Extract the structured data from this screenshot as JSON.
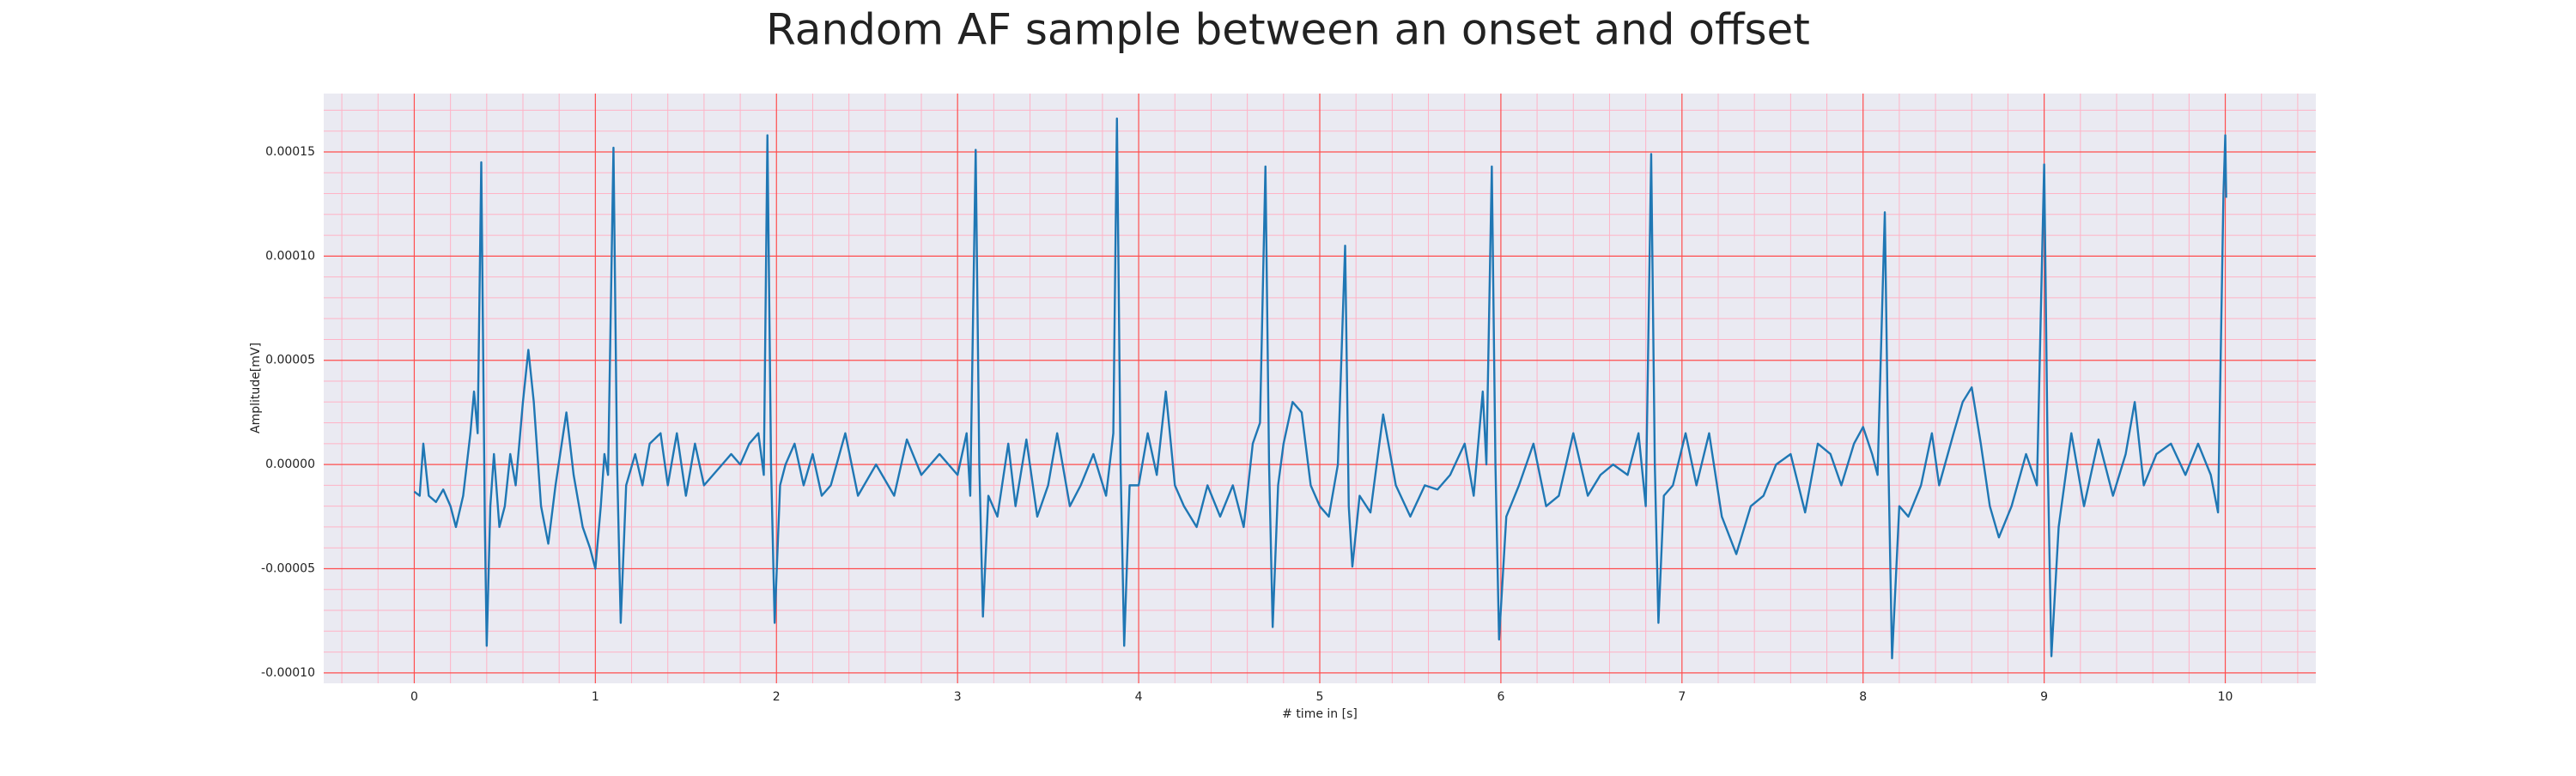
{
  "chart_data": {
    "type": "line",
    "title": "Random AF sample between an onset and offset",
    "xlabel": "# time in [s]",
    "ylabel": "Amplitude[mV]",
    "xlim": [
      -0.5,
      10.5
    ],
    "ylim": [
      -0.000105,
      0.000178
    ],
    "xticks": [
      0,
      1,
      2,
      3,
      4,
      5,
      6,
      7,
      8,
      9,
      10
    ],
    "yticks": [
      {
        "value": -0.0001,
        "label": "-0.00010"
      },
      {
        "value": -5e-05,
        "label": "-0.00005"
      },
      {
        "value": 0,
        "label": "0.00000"
      },
      {
        "value": 5e-05,
        "label": "0.00005"
      },
      {
        "value": 0.0001,
        "label": "0.00010"
      },
      {
        "value": 0.00015,
        "label": "0.00015"
      }
    ],
    "grid": true,
    "minor_grid": true,
    "grid_color": "#ff4d4d",
    "minor_grid_color": "#ffb3c6",
    "background": "#eaeaf2",
    "series": [
      {
        "color": "#1f77b4",
        "x": [
          0.0,
          0.03,
          0.05,
          0.08,
          0.12,
          0.16,
          0.2,
          0.23,
          0.27,
          0.31,
          0.33,
          0.35,
          0.37,
          0.39,
          0.4,
          0.42,
          0.44,
          0.47,
          0.5,
          0.53,
          0.56,
          0.6,
          0.63,
          0.66,
          0.7,
          0.74,
          0.78,
          0.84,
          0.88,
          0.93,
          0.97,
          1.0,
          1.03,
          1.05,
          1.07,
          1.1,
          1.12,
          1.14,
          1.17,
          1.22,
          1.26,
          1.3,
          1.36,
          1.4,
          1.45,
          1.5,
          1.55,
          1.6,
          1.65,
          1.7,
          1.75,
          1.8,
          1.85,
          1.9,
          1.93,
          1.95,
          1.97,
          1.99,
          2.02,
          2.05,
          2.1,
          2.15,
          2.2,
          2.25,
          2.3,
          2.38,
          2.45,
          2.55,
          2.65,
          2.72,
          2.8,
          2.9,
          3.0,
          3.05,
          3.07,
          3.1,
          3.12,
          3.14,
          3.17,
          3.22,
          3.28,
          3.32,
          3.38,
          3.44,
          3.5,
          3.55,
          3.62,
          3.68,
          3.75,
          3.82,
          3.86,
          3.88,
          3.9,
          3.92,
          3.95,
          4.0,
          4.05,
          4.1,
          4.15,
          4.2,
          4.25,
          4.32,
          4.38,
          4.45,
          4.52,
          4.58,
          4.63,
          4.67,
          4.7,
          4.72,
          4.74,
          4.77,
          4.8,
          4.85,
          4.9,
          4.95,
          5.0,
          5.05,
          5.1,
          5.14,
          5.16,
          5.18,
          5.22,
          5.28,
          5.35,
          5.42,
          5.5,
          5.58,
          5.65,
          5.72,
          5.8,
          5.85,
          5.9,
          5.92,
          5.95,
          5.97,
          5.99,
          6.03,
          6.1,
          6.18,
          6.25,
          6.32,
          6.4,
          6.48,
          6.55,
          6.62,
          6.7,
          6.76,
          6.8,
          6.83,
          6.85,
          6.87,
          6.9,
          6.95,
          7.02,
          7.08,
          7.15,
          7.22,
          7.3,
          7.38,
          7.45,
          7.52,
          7.6,
          7.68,
          7.75,
          7.82,
          7.88,
          7.95,
          8.0,
          8.05,
          8.08,
          8.12,
          8.14,
          8.16,
          8.2,
          8.25,
          8.32,
          8.38,
          8.42,
          8.5,
          8.55,
          8.6,
          8.65,
          8.7,
          8.75,
          8.82,
          8.9,
          8.96,
          9.0,
          9.02,
          9.04,
          9.08,
          9.15,
          9.22,
          9.3,
          9.38,
          9.45,
          9.5,
          9.55,
          9.62,
          9.7,
          9.78,
          9.85,
          9.92,
          9.96,
          9.99,
          10.0,
          10.005
        ],
        "values": [
          -1.3e-05,
          -1.5e-05,
          1e-05,
          -1.5e-05,
          -1.8e-05,
          -1.2e-05,
          -2e-05,
          -3e-05,
          -1.5e-05,
          1.5e-05,
          3.5e-05,
          1.5e-05,
          0.000145,
          -3e-05,
          -8.7e-05,
          -2e-05,
          5e-06,
          -3e-05,
          -2e-05,
          5e-06,
          -1e-05,
          3e-05,
          5.5e-05,
          3e-05,
          -2e-05,
          -3.8e-05,
          -1e-05,
          2.5e-05,
          -5e-06,
          -3e-05,
          -4e-05,
          -5e-05,
          -2e-05,
          5e-06,
          -5e-06,
          0.000152,
          0,
          -7.6e-05,
          -1e-05,
          5e-06,
          -1e-05,
          1e-05,
          1.5e-05,
          -1e-05,
          1.5e-05,
          -1.5e-05,
          1e-05,
          -1e-05,
          -5e-06,
          0,
          5e-06,
          0,
          1e-05,
          1.5e-05,
          -5e-06,
          0.000158,
          0,
          -7.6e-05,
          -1e-05,
          0,
          1e-05,
          -1e-05,
          5e-06,
          -1.5e-05,
          -1e-05,
          1.5e-05,
          -1.5e-05,
          0,
          -1.5e-05,
          1.2e-05,
          -5e-06,
          5e-06,
          -5e-06,
          1.5e-05,
          -1.5e-05,
          0.000151,
          0,
          -7.3e-05,
          -1.5e-05,
          -2.5e-05,
          1e-05,
          -2e-05,
          1.2e-05,
          -2.5e-05,
          -1e-05,
          1.5e-05,
          -2e-05,
          -1e-05,
          5e-06,
          -1.5e-05,
          1.5e-05,
          0.000166,
          0,
          -8.7e-05,
          -1e-05,
          -1e-05,
          1.5e-05,
          -5e-06,
          3.5e-05,
          -1e-05,
          -2e-05,
          -3e-05,
          -1e-05,
          -2.5e-05,
          -1e-05,
          -3e-05,
          1e-05,
          2e-05,
          0.000143,
          0,
          -7.8e-05,
          -1e-05,
          1e-05,
          3e-05,
          2.5e-05,
          -1e-05,
          -2e-05,
          -2.5e-05,
          0,
          0.000105,
          -2e-05,
          -4.9e-05,
          -1.5e-05,
          -2.3e-05,
          2.4e-05,
          -1e-05,
          -2.5e-05,
          -1e-05,
          -1.2e-05,
          -5e-06,
          1e-05,
          -1.5e-05,
          3.5e-05,
          0,
          0.000143,
          0,
          -8.4e-05,
          -2.5e-05,
          -1e-05,
          1e-05,
          -2e-05,
          -1.5e-05,
          1.5e-05,
          -1.5e-05,
          -5e-06,
          0,
          -5e-06,
          1.5e-05,
          -2e-05,
          0.000149,
          0,
          -7.6e-05,
          -1.5e-05,
          -1e-05,
          1.5e-05,
          -1e-05,
          1.5e-05,
          -2.5e-05,
          -4.3e-05,
          -2e-05,
          -1.5e-05,
          0,
          5e-06,
          -2.3e-05,
          1e-05,
          5e-06,
          -1e-05,
          1e-05,
          1.8e-05,
          5e-06,
          -5e-06,
          0.000121,
          0,
          -9.3e-05,
          -2e-05,
          -2.5e-05,
          -1e-05,
          1.5e-05,
          -1e-05,
          1.5e-05,
          3e-05,
          3.7e-05,
          1e-05,
          -2e-05,
          -3.5e-05,
          -2e-05,
          5e-06,
          -1e-05,
          0.000144,
          0,
          -9.2e-05,
          -3e-05,
          1.5e-05,
          -2e-05,
          1.2e-05,
          -1.5e-05,
          5e-06,
          3e-05,
          -1e-05,
          5e-06,
          1e-05,
          -5e-06,
          1e-05,
          -5e-06,
          -2.3e-05,
          0.00013,
          0.000158,
          0.000128
        ]
      }
    ]
  }
}
